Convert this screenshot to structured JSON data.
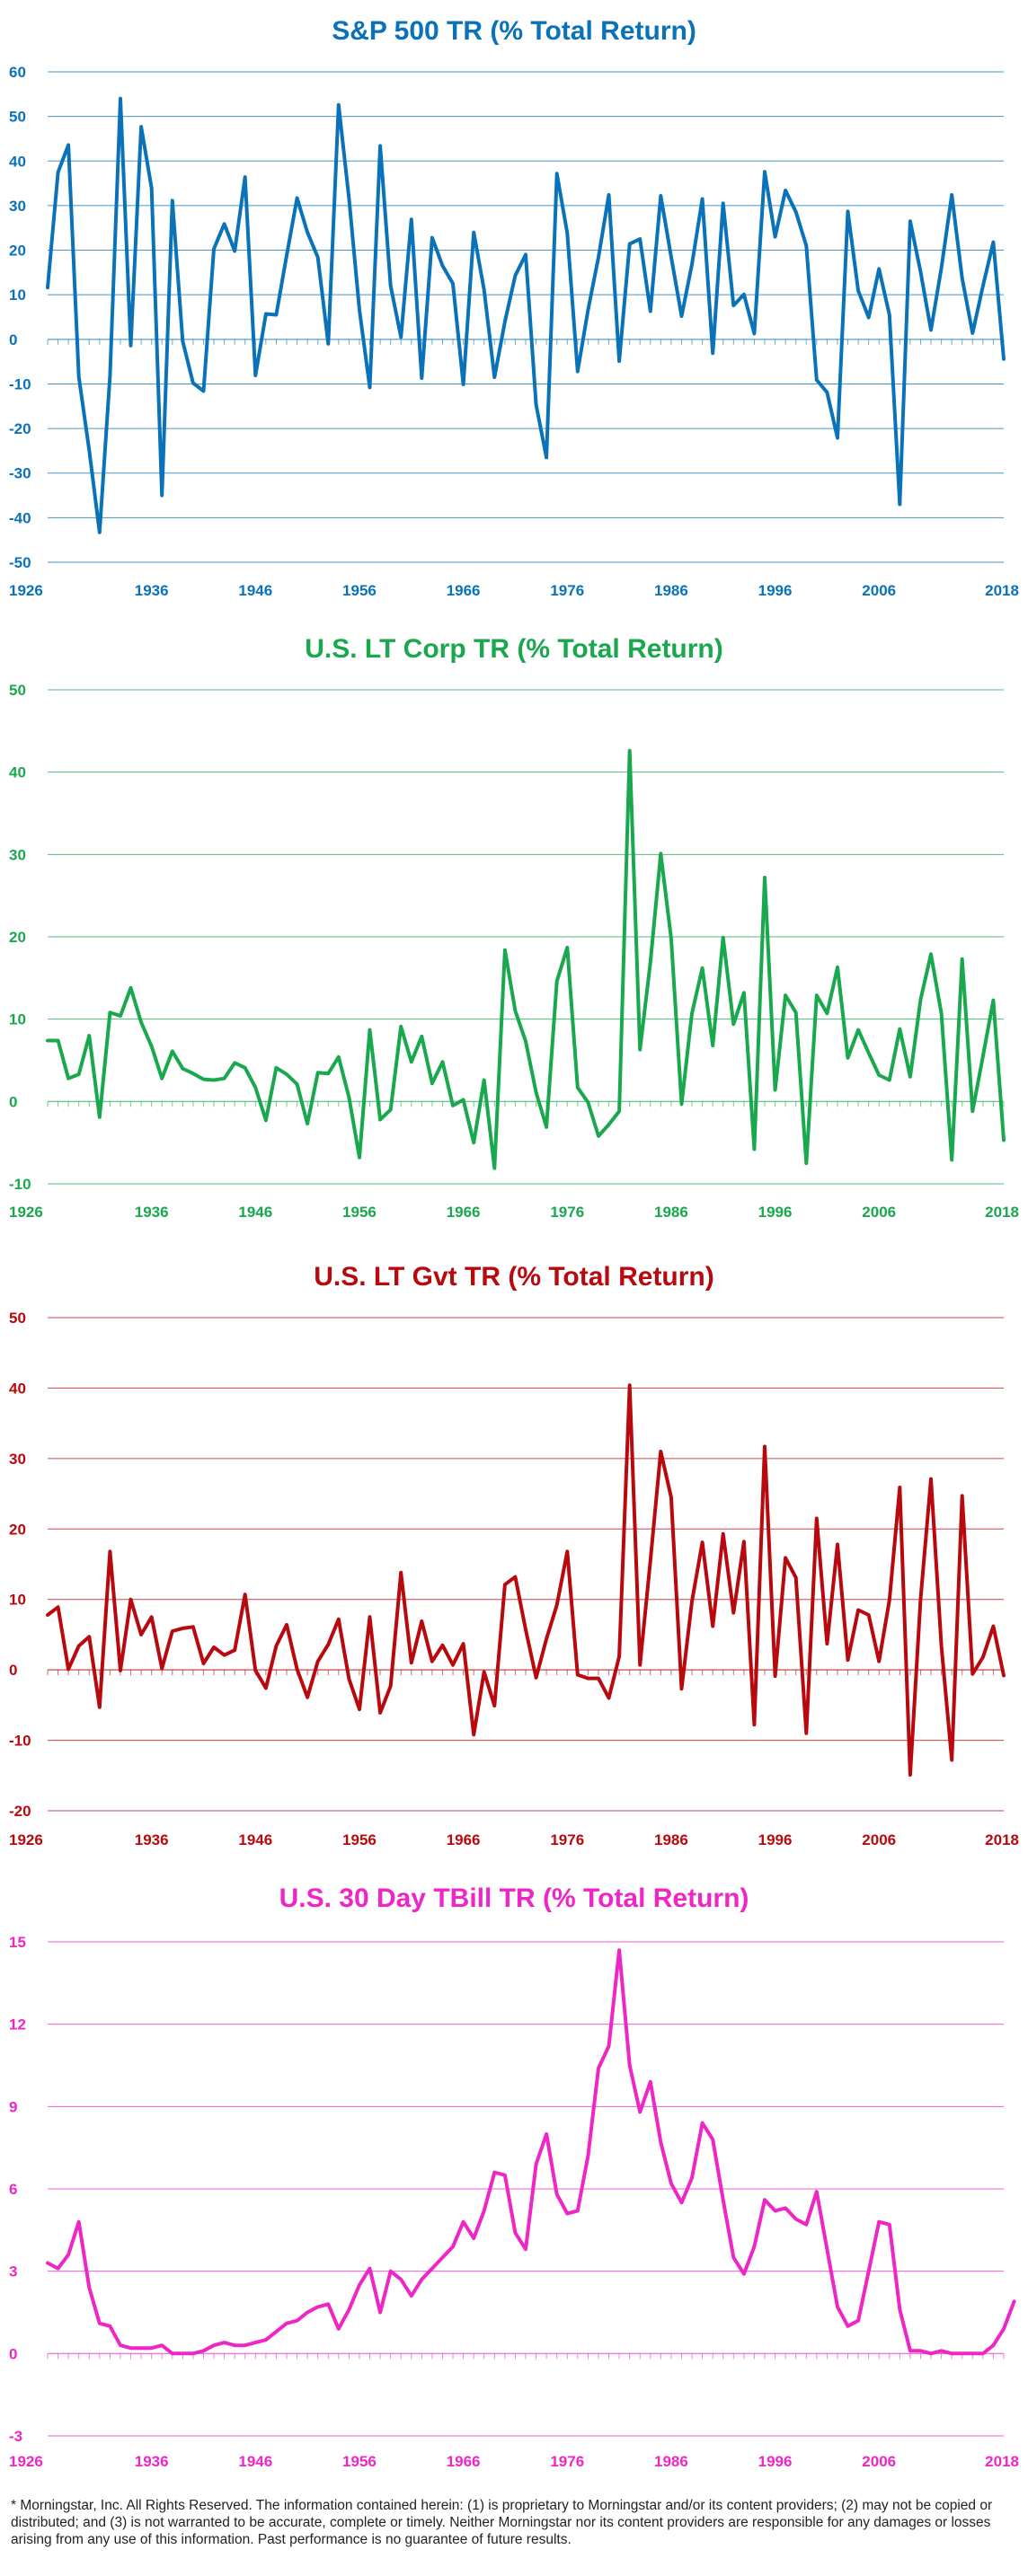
{
  "footnote": "* Morningstar, Inc. All Rights Reserved. The information contained herein: (1) is proprietary to Morningstar and/or its content providers; (2) may not be copied or distributed; and (3) is not warranted to be accurate, complete or timely. Neither Morningstar nor its content providers are responsible for any damages or losses arising from any use of this information. Past performance is no guarantee of future results.",
  "chart_data": [
    {
      "type": "line",
      "title": "S&P 500 TR (% Total Return)",
      "color": "#0a72b8",
      "xlim": [
        1926,
        2018
      ],
      "x_ticks": [
        1926,
        1936,
        1946,
        1956,
        1966,
        1976,
        1986,
        1996,
        2006,
        2018
      ],
      "ylim": [
        -50,
        60
      ],
      "y_ticks": [
        -50,
        -40,
        -30,
        -20,
        -10,
        0,
        10,
        20,
        30,
        40,
        50,
        60
      ],
      "series": [
        {
          "x_start": 1926,
          "values": [
            11.6,
            37.5,
            43.6,
            -8.4,
            -24.9,
            -43.3,
            -8.2,
            54.0,
            -1.4,
            47.7,
            33.9,
            -35.0,
            31.1,
            -0.4,
            -9.8,
            -11.6,
            20.3,
            25.9,
            19.8,
            36.4,
            -8.1,
            5.7,
            5.5,
            18.8,
            31.7,
            24.0,
            18.4,
            -1.0,
            52.6,
            31.6,
            6.6,
            -10.8,
            43.4,
            12.0,
            0.5,
            26.9,
            -8.7,
            22.8,
            16.5,
            12.5,
            -10.1,
            24.0,
            11.1,
            -8.5,
            4.0,
            14.3,
            19.0,
            -14.7,
            -26.5,
            37.2,
            23.8,
            -7.2,
            6.6,
            18.4,
            32.4,
            -4.9,
            21.4,
            22.5,
            6.3,
            32.2,
            18.5,
            5.2,
            16.8,
            31.5,
            -3.1,
            30.5,
            7.6,
            10.1,
            1.3,
            37.6,
            23.0,
            33.4,
            28.6,
            21.0,
            -9.1,
            -11.9,
            -22.1,
            28.7,
            10.9,
            4.9,
            15.8,
            5.5,
            -37.0,
            26.5,
            15.1,
            2.1,
            16.0,
            32.4,
            13.7,
            1.4,
            12.0,
            21.8,
            -4.4
          ]
        }
      ]
    },
    {
      "type": "line",
      "title": "U.S. LT Corp TR (% Total Return)",
      "color": "#1aa84e",
      "xlim": [
        1926,
        2018
      ],
      "x_ticks": [
        1926,
        1936,
        1946,
        1956,
        1966,
        1976,
        1986,
        1996,
        2006,
        2018
      ],
      "ylim": [
        -10,
        50
      ],
      "y_ticks": [
        -10,
        0,
        10,
        20,
        30,
        40,
        50
      ],
      "series": [
        {
          "x_start": 1926,
          "values": [
            7.4,
            7.4,
            2.8,
            3.3,
            8.0,
            -1.9,
            10.8,
            10.4,
            13.8,
            9.6,
            6.7,
            2.8,
            6.1,
            4.0,
            3.4,
            2.7,
            2.6,
            2.8,
            4.7,
            4.1,
            1.7,
            -2.3,
            4.1,
            3.3,
            2.1,
            -2.7,
            3.5,
            3.4,
            5.4,
            0.5,
            -6.8,
            8.7,
            -2.2,
            -1.0,
            9.1,
            4.8,
            7.9,
            2.2,
            4.8,
            -0.5,
            0.2,
            -5.0,
            2.6,
            -8.1,
            18.4,
            11.0,
            7.3,
            1.1,
            -3.1,
            14.6,
            18.7,
            1.7,
            -0.1,
            -4.2,
            -2.8,
            -1.2,
            42.6,
            6.3,
            16.9,
            30.1,
            19.8,
            -0.3,
            10.7,
            16.2,
            6.8,
            19.9,
            9.4,
            13.2,
            -5.8,
            27.2,
            1.4,
            12.9,
            10.8,
            -7.5,
            12.9,
            10.7,
            16.3,
            5.3,
            8.7,
            5.9,
            3.2,
            2.6,
            8.8,
            3.0,
            12.4,
            17.9,
            10.7,
            -7.1,
            17.3,
            -1.2,
            5.5,
            12.3,
            -4.7
          ]
        }
      ]
    },
    {
      "type": "line",
      "title": "U.S. LT Gvt TR (% Total Return)",
      "color": "#b8090f",
      "xlim": [
        1926,
        2018
      ],
      "x_ticks": [
        1926,
        1936,
        1946,
        1956,
        1966,
        1976,
        1986,
        1996,
        2006,
        2018
      ],
      "ylim": [
        -20,
        50
      ],
      "y_ticks": [
        -20,
        -10,
        0,
        10,
        20,
        30,
        40,
        50
      ],
      "series": [
        {
          "x_start": 1926,
          "values": [
            7.8,
            8.9,
            0.1,
            3.4,
            4.7,
            -5.3,
            16.8,
            -0.1,
            10.0,
            5.0,
            7.5,
            0.2,
            5.5,
            5.9,
            6.1,
            0.9,
            3.2,
            2.1,
            2.8,
            10.7,
            -0.1,
            -2.6,
            3.4,
            6.4,
            0.1,
            -3.9,
            1.2,
            3.6,
            7.2,
            -1.3,
            -5.6,
            7.5,
            -6.1,
            -2.3,
            13.8,
            1.0,
            6.9,
            1.2,
            3.5,
            0.7,
            3.7,
            -9.2,
            -0.3,
            -5.1,
            12.1,
            13.2,
            5.7,
            -1.1,
            4.4,
            9.2,
            16.8,
            -0.7,
            -1.2,
            -1.2,
            -4.0,
            1.9,
            40.4,
            0.7,
            15.5,
            31.0,
            24.5,
            -2.7,
            9.7,
            18.1,
            6.2,
            19.3,
            8.1,
            18.2,
            -7.8,
            31.7,
            -0.9,
            15.9,
            13.1,
            -9.0,
            21.5,
            3.7,
            17.8,
            1.4,
            8.5,
            7.8,
            1.2,
            9.9,
            25.9,
            -14.9,
            10.1,
            27.1,
            3.4,
            -12.8,
            24.7,
            -0.6,
            1.8,
            6.2,
            -0.8
          ]
        }
      ]
    },
    {
      "type": "line",
      "title": "U.S. 30 Day TBill TR (% Total Return)",
      "color": "#ee26c5",
      "xlim": [
        1926,
        2018
      ],
      "x_ticks": [
        1926,
        1936,
        1946,
        1956,
        1966,
        1976,
        1986,
        1996,
        2006,
        2018
      ],
      "ylim": [
        -3,
        15
      ],
      "y_ticks": [
        -3,
        0,
        3,
        6,
        9,
        12,
        15
      ],
      "series": [
        {
          "x_start": 1926,
          "values": [
            3.3,
            3.1,
            3.6,
            4.8,
            2.4,
            1.1,
            1.0,
            0.3,
            0.2,
            0.2,
            0.2,
            0.3,
            0.0,
            0.0,
            0.0,
            0.1,
            0.3,
            0.4,
            0.3,
            0.3,
            0.4,
            0.5,
            0.8,
            1.1,
            1.2,
            1.5,
            1.7,
            1.8,
            0.9,
            1.6,
            2.5,
            3.1,
            1.5,
            3.0,
            2.7,
            2.1,
            2.7,
            3.1,
            3.5,
            3.9,
            4.8,
            4.2,
            5.2,
            6.6,
            6.5,
            4.4,
            3.8,
            6.9,
            8.0,
            5.8,
            5.1,
            5.2,
            7.2,
            10.4,
            11.2,
            14.7,
            10.5,
            8.8,
            9.9,
            7.7,
            6.2,
            5.5,
            6.4,
            8.4,
            7.8,
            5.6,
            3.5,
            2.9,
            3.9,
            5.6,
            5.2,
            5.3,
            4.9,
            4.7,
            5.9,
            3.8,
            1.7,
            1.0,
            1.2,
            3.0,
            4.8,
            4.7,
            1.6,
            0.1,
            0.1,
            0.0,
            0.1,
            0.0,
            0.0,
            0.0,
            0.0,
            0.3,
            0.9,
            1.9
          ]
        }
      ]
    }
  ]
}
